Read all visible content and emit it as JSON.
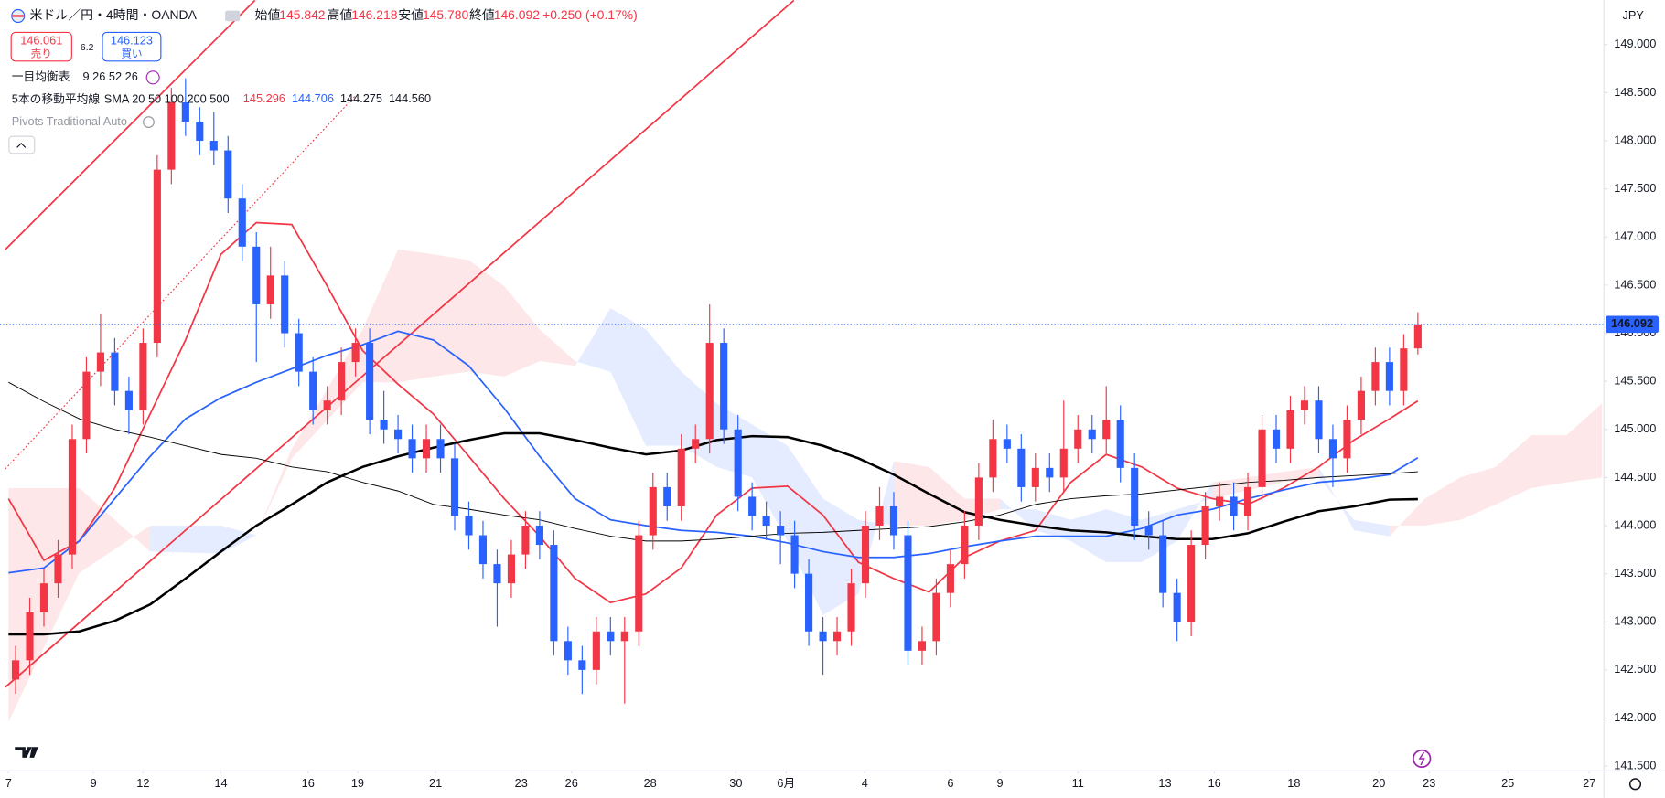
{
  "header": {
    "symbol": "米ドル／円・4時間・OANDA",
    "ohlc": [
      {
        "label": "始値",
        "value": "145.842"
      },
      {
        "label": "高値",
        "value": "146.218"
      },
      {
        "label": "安値",
        "value": "145.780"
      },
      {
        "label": "終値",
        "value": "146.092"
      }
    ],
    "change": "+0.250 (+0.17%)",
    "sell": {
      "price": "146.061",
      "label": "売り"
    },
    "spread": "6.2",
    "buy": {
      "price": "146.123",
      "label": "買い"
    }
  },
  "indicators": {
    "ichimoku": {
      "name": "一目均衡表",
      "params": "9 26 52 26"
    },
    "ma": {
      "name": "5本の移動平均線",
      "params": "SMA 20 50 100 200 500"
    },
    "pivots": "Pivots Traditional Auto"
  },
  "chart_data": {
    "type": "candlestick",
    "currency": "JPY",
    "xlim": [
      -1.2,
      225.2
    ],
    "ylim": [
      141.456,
      149.463
    ],
    "grid": false,
    "xticks": [
      {
        "value": 0,
        "label": "7"
      },
      {
        "value": 12,
        "label": "9"
      },
      {
        "value": 19,
        "label": "12"
      },
      {
        "value": 30,
        "label": "14"
      },
      {
        "value": 42.3,
        "label": "16"
      },
      {
        "value": 49.3,
        "label": "19"
      },
      {
        "value": 60.3,
        "label": "21"
      },
      {
        "value": 72.4,
        "label": "23"
      },
      {
        "value": 79.5,
        "label": "26"
      },
      {
        "value": 90.6,
        "label": "28"
      },
      {
        "value": 102.7,
        "label": "30"
      },
      {
        "value": 109.8,
        "label": "6月"
      },
      {
        "value": 120.9,
        "label": "4"
      },
      {
        "value": 133,
        "label": "6"
      },
      {
        "value": 140,
        "label": "9"
      },
      {
        "value": 151,
        "label": "11"
      },
      {
        "value": 163.3,
        "label": "13"
      },
      {
        "value": 170.3,
        "label": "16"
      },
      {
        "value": 181.5,
        "label": "18"
      },
      {
        "value": 193.5,
        "label": "20"
      },
      {
        "value": 200.6,
        "label": "23"
      },
      {
        "value": 211.7,
        "label": "25"
      },
      {
        "value": 223.2,
        "label": "27"
      }
    ],
    "yticks": [
      {
        "value": 141.5,
        "label": "141.500"
      },
      {
        "value": 142,
        "label": "142.000"
      },
      {
        "value": 142.5,
        "label": "142.500"
      },
      {
        "value": 143,
        "label": "143.000"
      },
      {
        "value": 143.5,
        "label": "143.500"
      },
      {
        "value": 144,
        "label": "144.000"
      },
      {
        "value": 144.5,
        "label": "144.500"
      },
      {
        "value": 145,
        "label": "145.000"
      },
      {
        "value": 145.5,
        "label": "145.500"
      },
      {
        "value": 146,
        "label": "146.000"
      },
      {
        "value": 146.5,
        "label": "146.500"
      },
      {
        "value": 147,
        "label": "147.000"
      },
      {
        "value": 147.5,
        "label": "147.500"
      },
      {
        "value": 148,
        "label": "148.000"
      },
      {
        "value": 148.5,
        "label": "148.500"
      },
      {
        "value": 149,
        "label": "149.000"
      }
    ],
    "up_color": "#f23645",
    "down_color": "#2962ff",
    "candles": {
      "x": [
        1,
        3,
        5,
        7,
        9,
        11,
        13,
        15,
        17,
        19,
        21,
        23,
        25,
        27,
        29,
        31,
        33,
        35,
        37,
        39,
        41,
        43,
        45,
        47,
        49,
        51,
        53,
        55,
        57,
        59,
        61,
        63,
        65,
        67,
        69,
        71,
        73,
        75,
        77,
        79,
        81,
        83,
        85,
        87,
        89,
        91,
        93,
        95,
        97,
        99,
        101,
        103,
        105,
        107,
        109,
        111,
        113,
        115,
        117,
        119,
        121,
        123,
        125,
        127,
        129,
        131,
        133,
        135,
        137,
        139,
        141,
        143,
        145,
        147,
        149,
        151,
        153,
        155,
        157,
        159,
        161,
        163,
        165,
        167,
        169,
        171,
        173,
        175,
        177,
        179,
        181,
        183,
        185,
        187,
        189,
        191,
        193,
        195,
        197,
        199
      ],
      "open": [
        142.4,
        142.6,
        143.1,
        143.4,
        143.7,
        144.9,
        145.6,
        145.8,
        145.4,
        145.2,
        145.9,
        147.7,
        148.4,
        148.2,
        148.0,
        147.9,
        147.4,
        146.9,
        146.3,
        146.6,
        146.0,
        145.6,
        145.2,
        145.3,
        145.7,
        145.9,
        145.1,
        145.0,
        144.9,
        144.7,
        144.9,
        144.7,
        144.1,
        143.9,
        143.6,
        143.4,
        143.7,
        144.0,
        143.8,
        142.8,
        142.6,
        142.5,
        142.9,
        142.8,
        142.9,
        143.9,
        144.4,
        144.2,
        144.8,
        144.9,
        145.9,
        145.0,
        144.3,
        144.1,
        144.0,
        143.9,
        143.5,
        142.9,
        142.8,
        142.9,
        143.4,
        144.0,
        144.2,
        143.9,
        142.7,
        142.8,
        143.3,
        143.6,
        144.0,
        144.5,
        144.9,
        144.8,
        144.4,
        144.6,
        144.5,
        144.8,
        145.0,
        144.9,
        145.1,
        144.6,
        144.0,
        143.9,
        143.3,
        143.0,
        143.8,
        144.2,
        144.3,
        144.1,
        144.4,
        145.0,
        144.8,
        145.2,
        145.3,
        144.9,
        144.7,
        145.1,
        145.4,
        145.7,
        145.4,
        145.842
      ],
      "high": [
        142.75,
        143.25,
        143.55,
        143.85,
        145.05,
        145.75,
        146.2,
        145.95,
        145.55,
        146.05,
        147.85,
        148.55,
        148.65,
        148.35,
        148.3,
        148.05,
        147.55,
        147.05,
        146.9,
        146.75,
        146.15,
        145.75,
        145.45,
        145.85,
        146.05,
        146.05,
        145.4,
        145.15,
        145.05,
        145.05,
        145.05,
        144.85,
        144.25,
        144.05,
        143.75,
        143.85,
        144.15,
        144.15,
        143.95,
        142.95,
        142.75,
        143.05,
        143.05,
        143.05,
        144.05,
        144.55,
        144.55,
        144.95,
        145.05,
        146.3,
        146.05,
        145.15,
        144.45,
        144.25,
        144.15,
        144.05,
        143.65,
        143.05,
        143.05,
        143.55,
        144.15,
        144.4,
        144.35,
        144.05,
        142.95,
        143.45,
        143.75,
        144.15,
        144.65,
        145.1,
        145.05,
        144.95,
        144.75,
        144.75,
        145.3,
        145.15,
        145.15,
        145.45,
        145.25,
        144.75,
        144.15,
        144.05,
        143.45,
        143.95,
        144.35,
        144.45,
        144.45,
        144.55,
        145.15,
        145.15,
        145.35,
        145.45,
        145.45,
        145.05,
        145.25,
        145.55,
        145.85,
        145.85,
        145.99,
        146.218
      ],
      "low": [
        142.25,
        142.45,
        142.95,
        143.25,
        143.55,
        144.75,
        145.45,
        145.25,
        144.95,
        145.05,
        145.75,
        147.55,
        148.05,
        147.85,
        147.75,
        147.25,
        146.75,
        145.7,
        146.15,
        145.85,
        145.45,
        145.05,
        145.05,
        145.15,
        145.55,
        144.95,
        144.85,
        144.75,
        144.55,
        144.55,
        144.55,
        143.95,
        143.75,
        143.45,
        142.95,
        143.25,
        143.55,
        143.65,
        142.65,
        142.45,
        142.25,
        142.35,
        142.65,
        142.15,
        142.75,
        143.75,
        144.05,
        144.05,
        144.65,
        144.75,
        144.85,
        144.15,
        143.95,
        143.85,
        143.6,
        143.35,
        142.75,
        142.45,
        142.65,
        142.75,
        143.25,
        143.85,
        143.75,
        142.55,
        142.55,
        142.65,
        143.15,
        143.45,
        143.85,
        144.35,
        144.65,
        144.25,
        144.25,
        144.35,
        144.35,
        144.65,
        144.75,
        144.75,
        144.45,
        143.85,
        143.75,
        143.15,
        142.8,
        142.85,
        143.65,
        144.05,
        143.95,
        143.95,
        144.25,
        144.65,
        144.65,
        145.05,
        144.75,
        144.4,
        144.55,
        144.95,
        145.25,
        145.25,
        145.25,
        145.78
      ],
      "close": [
        142.6,
        143.1,
        143.4,
        143.7,
        144.9,
        145.6,
        145.8,
        145.4,
        145.2,
        145.9,
        147.7,
        148.4,
        148.2,
        148.0,
        147.9,
        147.4,
        146.9,
        146.3,
        146.6,
        146.0,
        145.6,
        145.2,
        145.3,
        145.7,
        145.9,
        145.1,
        145.0,
        144.9,
        144.7,
        144.9,
        144.7,
        144.1,
        143.9,
        143.6,
        143.4,
        143.7,
        144.0,
        143.8,
        142.8,
        142.6,
        142.5,
        142.9,
        142.8,
        142.9,
        143.9,
        144.4,
        144.2,
        144.8,
        144.9,
        145.9,
        145.0,
        144.3,
        144.1,
        144.0,
        143.9,
        143.5,
        142.9,
        142.8,
        142.9,
        143.4,
        144.0,
        144.2,
        143.9,
        142.7,
        142.8,
        143.3,
        143.6,
        144.0,
        144.5,
        144.9,
        144.8,
        144.4,
        144.6,
        144.5,
        144.8,
        145.0,
        144.9,
        145.1,
        144.6,
        144.0,
        143.9,
        143.3,
        143.0,
        143.8,
        144.2,
        144.3,
        144.1,
        144.4,
        145.0,
        144.8,
        145.2,
        145.3,
        144.9,
        144.7,
        145.1,
        145.4,
        145.7,
        145.4,
        145.842,
        146.092
      ]
    },
    "ma": {
      "x": [
        0,
        5,
        10,
        15,
        20,
        25,
        30,
        35,
        40,
        45,
        50,
        55,
        60,
        65,
        70,
        75,
        80,
        85,
        90,
        95,
        100,
        105,
        110,
        115,
        120,
        125,
        130,
        135,
        140,
        145,
        150,
        155,
        160,
        165,
        170,
        175,
        180,
        185,
        190,
        195,
        199
      ],
      "series": [
        {
          "color": "#f23645",
          "width": 1.5,
          "value_label": "145.296",
          "values": [
            144.28,
            143.64,
            143.84,
            144.39,
            145.16,
            145.93,
            146.82,
            147.15,
            147.13,
            146.49,
            145.82,
            145.47,
            145.16,
            144.72,
            144.28,
            143.89,
            143.45,
            143.2,
            143.29,
            143.56,
            144.11,
            144.39,
            144.41,
            144.11,
            143.62,
            143.45,
            143.31,
            143.67,
            143.84,
            143.95,
            144.45,
            144.74,
            144.61,
            144.39,
            144.28,
            144.22,
            144.39,
            144.61,
            144.89,
            145.11,
            145.296
          ]
        },
        {
          "color": "#2962ff",
          "width": 1.5,
          "value_label": "144.706",
          "values": [
            143.51,
            143.56,
            143.84,
            144.28,
            144.72,
            145.11,
            145.33,
            145.49,
            145.63,
            145.77,
            145.88,
            146.02,
            145.93,
            145.66,
            145.22,
            144.72,
            144.28,
            144.06,
            144.0,
            143.95,
            143.93,
            143.89,
            143.82,
            143.73,
            143.67,
            143.67,
            143.71,
            143.78,
            143.84,
            143.89,
            143.89,
            143.89,
            143.97,
            144.11,
            144.17,
            144.28,
            144.37,
            144.45,
            144.48,
            144.53,
            144.706
          ]
        },
        {
          "color": "#000000",
          "width": 2.2,
          "value_label": "144.275",
          "values": [
            142.87,
            142.87,
            142.9,
            143.01,
            143.18,
            143.45,
            143.73,
            144.0,
            144.22,
            144.45,
            144.61,
            144.72,
            144.81,
            144.89,
            144.96,
            144.96,
            144.89,
            144.81,
            144.74,
            144.78,
            144.89,
            144.93,
            144.92,
            144.83,
            144.7,
            144.53,
            144.33,
            144.14,
            144.06,
            144.0,
            143.95,
            143.93,
            143.89,
            143.86,
            143.86,
            143.92,
            144.04,
            144.15,
            144.2,
            144.27,
            144.275
          ]
        },
        {
          "color": "#000000",
          "width": 0.8,
          "value_label": "144.560",
          "values": [
            145.49,
            145.29,
            145.11,
            145.0,
            144.92,
            144.83,
            144.74,
            144.7,
            144.61,
            144.56,
            144.45,
            144.36,
            144.22,
            144.17,
            144.11,
            144.06,
            143.97,
            143.89,
            143.84,
            143.84,
            143.86,
            143.89,
            143.92,
            143.93,
            143.95,
            143.97,
            143.99,
            144.04,
            144.11,
            144.22,
            144.28,
            144.31,
            144.33,
            144.37,
            144.41,
            144.45,
            144.47,
            144.5,
            144.52,
            144.54,
            144.56
          ]
        }
      ]
    },
    "cloud": {
      "colors": [
        "#2962ff",
        "#f23645"
      ],
      "x": [
        0,
        10,
        20,
        30,
        35,
        40,
        50,
        55,
        60,
        65,
        70,
        75,
        80,
        85,
        90,
        95,
        100,
        105,
        110,
        115,
        120,
        125,
        130,
        135,
        140,
        145,
        150,
        155,
        160,
        165,
        170,
        175,
        180,
        185,
        190,
        195,
        200,
        205,
        210,
        215,
        220,
        225
      ],
      "span_a": [
        141.96,
        143.51,
        144.0,
        144.0,
        143.9,
        144.7,
        145.49,
        145.49,
        145.55,
        145.6,
        145.55,
        145.71,
        145.66,
        146.26,
        146.04,
        145.6,
        145.27,
        145.05,
        144.83,
        144.28,
        144.06,
        144.0,
        144.0,
        144.06,
        144.17,
        144.17,
        144.06,
        144.17,
        144.06,
        144.17,
        144.28,
        144.37,
        144.45,
        144.5,
        144.06,
        144.0,
        144.0,
        144.06,
        144.22,
        144.39,
        144.45,
        144.5
      ],
      "span_b": [
        144.39,
        144.39,
        143.73,
        143.71,
        143.9,
        144.8,
        146.04,
        146.87,
        146.82,
        146.76,
        146.49,
        146.04,
        145.71,
        145.6,
        144.83,
        144.83,
        144.61,
        144.5,
        143.84,
        143.07,
        143.29,
        144.67,
        144.61,
        144.28,
        144.28,
        143.95,
        143.84,
        143.62,
        143.62,
        143.84,
        144.45,
        144.5,
        144.56,
        144.61,
        143.95,
        143.89,
        144.28,
        144.5,
        144.61,
        144.94,
        144.94,
        145.27
      ]
    },
    "trend_lines": [
      {
        "points": [
          -0.45,
          146.87,
          34.8,
          149.46
        ],
        "style": "solid",
        "color": "#f23645"
      },
      {
        "points": [
          -0.45,
          144.59,
          49,
          148.47
        ],
        "style": "dotted",
        "color": "#f23645"
      },
      {
        "points": [
          -0.45,
          142.32,
          110.9,
          149.46
        ],
        "style": "solid",
        "color": "#f23645"
      }
    ],
    "last_price": 146.092,
    "last_price_label": "146.092",
    "last_price_color": "#2962ff"
  }
}
